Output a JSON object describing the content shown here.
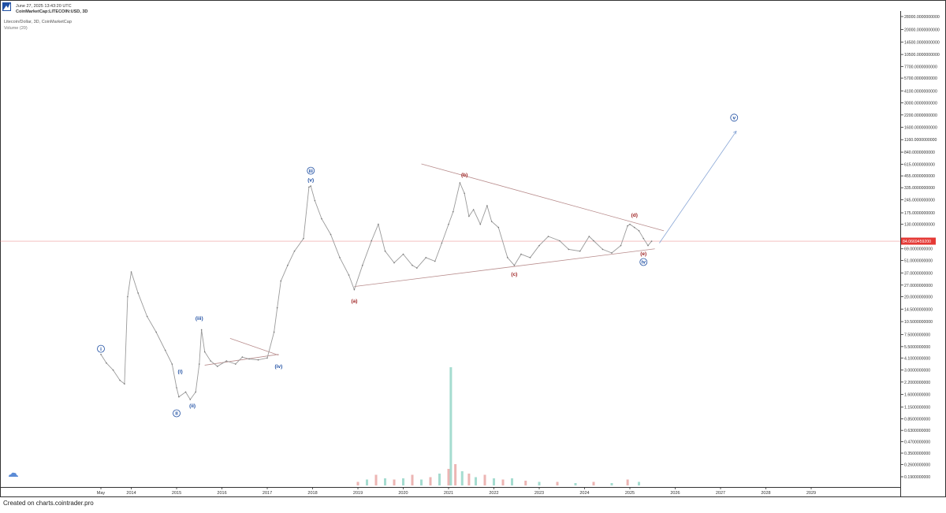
{
  "header": {
    "timestamp": "June 27, 2025 13:43:20 UTC",
    "source_line": "CoinMarketCap:LITECOIN:USD, 3D",
    "chart_title": "Litecoin/Dollar, 3D, CoinMarketCap",
    "volume_label": "Volume (20)"
  },
  "footer": {
    "credit": "Created on charts.cointrader.pro"
  },
  "colors": {
    "up": "#8fd3c4",
    "down": "#e7a2a0",
    "price_line": "#e57373",
    "label_box": "#e53935",
    "blue_wave": "#1f4fa3",
    "red_wave": "#9b1c1c",
    "trend": "#b88c8c",
    "projection": "#8aa7d6"
  },
  "icons": {
    "logo": "logo-icon",
    "cloud": "cloud-icon"
  },
  "chart_data": {
    "type": "line",
    "scale": "log",
    "x_ticks": [
      "May",
      "2014",
      "2015",
      "2016",
      "2017",
      "2018",
      "2019",
      "2020",
      "2021",
      "2022",
      "2023",
      "2024",
      "2025",
      "2026",
      "2027",
      "2028",
      "2029"
    ],
    "y_ticks": [
      "28000.0000000000",
      "20000.0000000000",
      "14500.0000000000",
      "10500.0000000000",
      "7700.0000000000",
      "5700.0000000000",
      "4100.0000000000",
      "3000.0000000000",
      "2200.0000000000",
      "1600.0000000000",
      "1160.0000000000",
      "840.0000000000",
      "615.0000000000",
      "455.0000000000",
      "335.0000000000",
      "245.0000000000",
      "175.0000000000",
      "130.0000000000",
      "69.0000000000",
      "51.0000000000",
      "37.0000000000",
      "27.0000000000",
      "20.0000000000",
      "14.5000000000",
      "10.5000000000",
      "7.5000000000",
      "5.5000000000",
      "4.1000000000",
      "3.0000000000",
      "2.2000000000",
      "1.6000000000",
      "1.1500000000",
      "0.8500000000",
      "0.6300000000",
      "0.4700000000",
      "0.3500000000",
      "0.2600000000",
      "0.1900000000"
    ],
    "current_price_label": "84.0669459200",
    "current_price": 84.07,
    "series": [
      {
        "x": [
          2013.33,
          2013.45,
          2013.6,
          2013.75,
          2013.85,
          2013.92,
          2014.0,
          2014.15,
          2014.35,
          2014.55,
          2014.75,
          2014.9,
          2015.0,
          2015.05,
          2015.2,
          2015.3,
          2015.42,
          2015.5,
          2015.55,
          2015.62,
          2015.75,
          2015.9,
          2016.1,
          2016.3,
          2016.45,
          2016.6,
          2016.8,
          2017.0,
          2017.15,
          2017.22,
          2017.3,
          2017.45,
          2017.6,
          2017.8,
          2017.92,
          2017.96,
          2018.05,
          2018.2,
          2018.4,
          2018.6,
          2018.8,
          2018.92,
          2019.1,
          2019.3,
          2019.45,
          2019.6,
          2019.8,
          2020.0,
          2020.2,
          2020.3,
          2020.5,
          2020.7,
          2020.85,
          2021.0,
          2021.1,
          2021.25,
          2021.35,
          2021.45,
          2021.55,
          2021.7,
          2021.85,
          2021.95,
          2022.1,
          2022.3,
          2022.45,
          2022.6,
          2022.8,
          2023.0,
          2023.2,
          2023.45,
          2023.65,
          2023.9,
          2024.1,
          2024.2,
          2024.4,
          2024.6,
          2024.8,
          2024.95,
          2025.0,
          2025.1,
          2025.2,
          2025.3,
          2025.4,
          2025.48
        ],
        "values": [
          4.5,
          3.6,
          3.0,
          2.3,
          2.1,
          20,
          38,
          22,
          12,
          8,
          5,
          3.5,
          1.9,
          1.5,
          1.7,
          1.4,
          1.7,
          3.5,
          8.5,
          4.8,
          3.8,
          3.3,
          3.8,
          3.5,
          4.2,
          4.0,
          3.9,
          4.1,
          8,
          15,
          30,
          45,
          65,
          90,
          340,
          350,
          240,
          150,
          100,
          55,
          35,
          24,
          45,
          85,
          130,
          65,
          48,
          60,
          45,
          42,
          55,
          50,
          80,
          130,
          180,
          380,
          290,
          160,
          190,
          130,
          210,
          140,
          120,
          55,
          45,
          60,
          55,
          75,
          95,
          85,
          68,
          65,
          95,
          85,
          68,
          62,
          75,
          125,
          130,
          120,
          110,
          90,
          75,
          84
        ]
      }
    ]
  },
  "annotations": [
    {
      "text": "i",
      "shape": "circle",
      "color": "blue",
      "x": 2013.33,
      "v": 5.2
    },
    {
      "text": "ii",
      "shape": "circle",
      "color": "blue",
      "x": 2015.0,
      "v": 0.98
    },
    {
      "text": "iii",
      "shape": "circle",
      "color": "blue",
      "x": 2017.96,
      "v": 520
    },
    {
      "text": "(v)",
      "shape": "plain",
      "color": "blue",
      "x": 2017.96,
      "v": 410
    },
    {
      "text": "(iii)",
      "shape": "plain",
      "color": "blue",
      "x": 2015.5,
      "v": 11.5
    },
    {
      "text": "(i)",
      "shape": "plain",
      "color": "blue",
      "x": 2015.08,
      "v": 2.9
    },
    {
      "text": "(ii)",
      "shape": "plain",
      "color": "blue",
      "x": 2015.35,
      "v": 1.2
    },
    {
      "text": "(iv)",
      "shape": "plain",
      "color": "blue",
      "x": 2017.25,
      "v": 3.3
    },
    {
      "text": "(a)",
      "shape": "plain",
      "color": "red",
      "x": 2018.92,
      "v": 18
    },
    {
      "text": "(b)",
      "shape": "plain",
      "color": "red",
      "x": 2021.35,
      "v": 470
    },
    {
      "text": "(c)",
      "shape": "plain",
      "color": "red",
      "x": 2022.45,
      "v": 36
    },
    {
      "text": "(d)",
      "shape": "plain",
      "color": "red",
      "x": 2025.1,
      "v": 165
    },
    {
      "text": "(e)",
      "shape": "plain",
      "color": "red",
      "x": 2025.3,
      "v": 61
    },
    {
      "text": "iv",
      "shape": "circle",
      "color": "blue",
      "x": 2025.3,
      "v": 49
    },
    {
      "text": "v",
      "shape": "circle",
      "color": "blue",
      "x": 2027.3,
      "v": 2050
    }
  ],
  "trendlines": [
    {
      "kind": "trend",
      "x1": 2015.62,
      "v1": 3.4,
      "x2": 2017.25,
      "v2": 4.5
    },
    {
      "kind": "trend",
      "x1": 2016.18,
      "v1": 6.8,
      "x2": 2017.25,
      "v2": 4.4
    },
    {
      "kind": "trend",
      "x1": 2018.92,
      "v1": 26,
      "x2": 2025.55,
      "v2": 69
    },
    {
      "kind": "trend",
      "x1": 2020.4,
      "v1": 620,
      "x2": 2025.75,
      "v2": 110
    },
    {
      "kind": "projection",
      "x1": 2025.65,
      "v1": 80,
      "x2": 2027.35,
      "v2": 1450
    }
  ],
  "volume": {
    "max_value": 1.0,
    "values": [
      {
        "x": 2019.0,
        "v": 0.03
      },
      {
        "x": 2019.2,
        "v": 0.05
      },
      {
        "x": 2019.4,
        "v": 0.09
      },
      {
        "x": 2019.6,
        "v": 0.06
      },
      {
        "x": 2019.8,
        "v": 0.05
      },
      {
        "x": 2020.0,
        "v": 0.06
      },
      {
        "x": 2020.2,
        "v": 0.09
      },
      {
        "x": 2020.4,
        "v": 0.05
      },
      {
        "x": 2020.6,
        "v": 0.07
      },
      {
        "x": 2020.8,
        "v": 0.1
      },
      {
        "x": 2021.0,
        "v": 0.14
      },
      {
        "x": 2021.05,
        "v": 1.0
      },
      {
        "x": 2021.15,
        "v": 0.18
      },
      {
        "x": 2021.3,
        "v": 0.12
      },
      {
        "x": 2021.45,
        "v": 0.1
      },
      {
        "x": 2021.6,
        "v": 0.07
      },
      {
        "x": 2021.8,
        "v": 0.09
      },
      {
        "x": 2022.0,
        "v": 0.06
      },
      {
        "x": 2022.2,
        "v": 0.05
      },
      {
        "x": 2022.4,
        "v": 0.06
      },
      {
        "x": 2022.7,
        "v": 0.04
      },
      {
        "x": 2023.0,
        "v": 0.03
      },
      {
        "x": 2023.4,
        "v": 0.03
      },
      {
        "x": 2023.8,
        "v": 0.02
      },
      {
        "x": 2024.2,
        "v": 0.03
      },
      {
        "x": 2024.6,
        "v": 0.02
      },
      {
        "x": 2024.95,
        "v": 0.05
      },
      {
        "x": 2025.2,
        "v": 0.03
      }
    ]
  }
}
